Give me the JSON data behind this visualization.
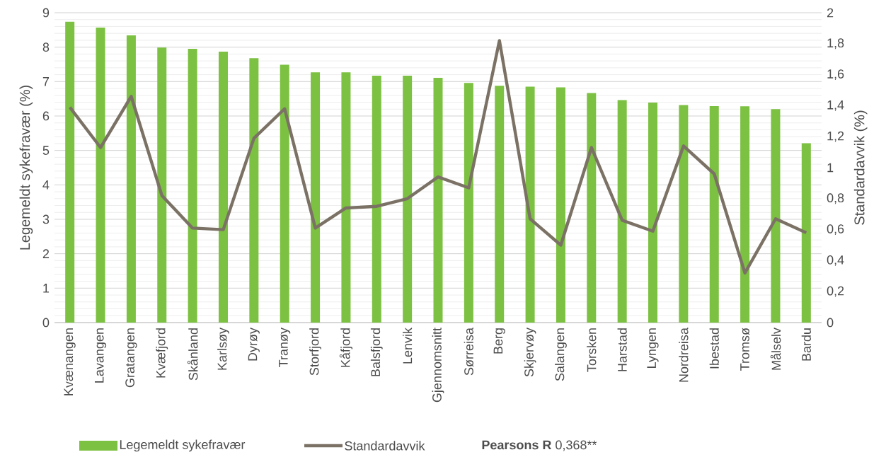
{
  "chart_data": {
    "type": "bar",
    "categories": [
      "Kvænangen",
      "Lavangen",
      "Gratangen",
      "Kvæfjord",
      "Skånland",
      "Karlsøy",
      "Dyrøy",
      "Tranøy",
      "Storfjord",
      "Kåfjord",
      "Balsfjord",
      "Lenvik",
      "Gjennomsnitt",
      "Sørreisa",
      "Berg",
      "Skjervøy",
      "Salangen",
      "Torsken",
      "Harstad",
      "Lyngen",
      "Nordreisa",
      "Ibestad",
      "Tromsø",
      "Målselv",
      "Bardu"
    ],
    "series": [
      {
        "name": "Legemeldt sykefravær",
        "color": "#7dc142",
        "values": [
          8.74,
          8.57,
          8.34,
          7.99,
          7.95,
          7.87,
          7.68,
          7.49,
          7.27,
          7.27,
          7.17,
          7.17,
          7.11,
          6.96,
          6.88,
          6.85,
          6.83,
          6.67,
          6.46,
          6.39,
          6.32,
          6.29,
          6.28,
          6.2,
          5.21
        ]
      },
      {
        "name": "Standardavvik",
        "type": "line",
        "axis": "y2",
        "color": "#7b7265",
        "values": [
          1.39,
          1.13,
          1.46,
          0.82,
          0.61,
          0.6,
          1.19,
          1.38,
          0.61,
          0.74,
          0.75,
          0.8,
          0.94,
          0.87,
          1.82,
          0.67,
          0.5,
          1.13,
          0.66,
          0.59,
          1.14,
          0.96,
          0.32,
          0.67,
          0.58
        ]
      }
    ],
    "ylabel": "Legemeldt sykefravær (%)",
    "y2label": "Standardavvik (%)",
    "ylim": [
      0,
      9
    ],
    "yticks": [
      0,
      1,
      2,
      3,
      4,
      5,
      6,
      7,
      8,
      9
    ],
    "y2lim": [
      0,
      2
    ],
    "y2ticks": [
      0,
      {
        "value": 0.2,
        "label": "0,2"
      },
      {
        "value": 0.4,
        "label": "0,4"
      },
      {
        "value": 0.6,
        "label": "0,6"
      },
      {
        "value": 0.8,
        "label": "0,8"
      },
      1,
      {
        "value": 1.2,
        "label": "1,2"
      },
      {
        "value": 1.4,
        "label": "1,4"
      },
      {
        "value": 1.6,
        "label": "1,6"
      },
      {
        "value": 1.8,
        "label": "1,8"
      },
      2
    ],
    "annotations": [
      "Pearsons R",
      "0,368**"
    ],
    "grid": "y",
    "legend": "bottom",
    "marker": "none",
    "line_style": "solid"
  }
}
